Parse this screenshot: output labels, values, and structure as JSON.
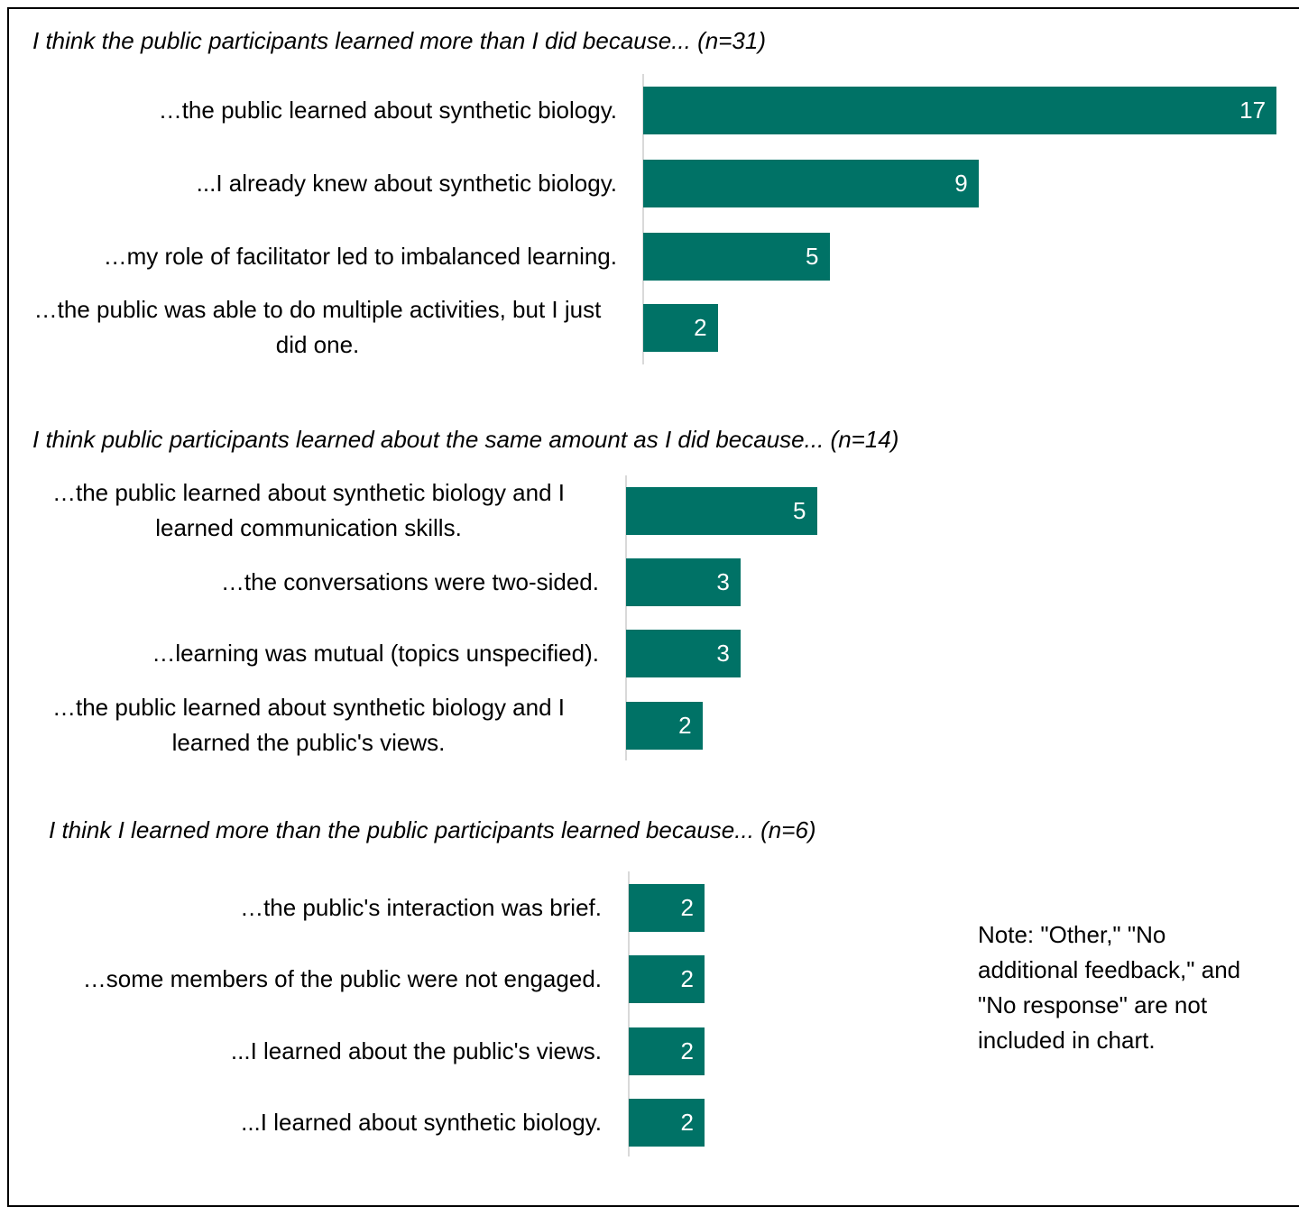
{
  "chart_data": [
    {
      "type": "bar",
      "orientation": "horizontal",
      "title": "I think the public participants learned more than I did because... (n=31)",
      "categories": [
        "…the public learned about synthetic biology.",
        "...I already knew about synthetic biology.",
        "…my role of facilitator led to imbalanced learning.",
        "…the public was able to do multiple activities, but I just did one."
      ],
      "values": [
        17,
        9,
        5,
        2
      ],
      "color": "#007266",
      "label_color": "#ffffff",
      "axis_color": "#d9d9d9"
    },
    {
      "type": "bar",
      "orientation": "horizontal",
      "title": "I think public participants learned about the same amount as I did because... (n=14)",
      "categories": [
        "…the public learned about synthetic biology and I learned communication skills.",
        "…the conversations were two-sided.",
        "…learning was mutual (topics unspecified).",
        "…the public learned about synthetic biology and I learned the public's views."
      ],
      "values": [
        5,
        3,
        3,
        2
      ],
      "color": "#007266",
      "label_color": "#ffffff",
      "axis_color": "#d9d9d9"
    },
    {
      "type": "bar",
      "orientation": "horizontal",
      "title": "I think I learned more than the public participants learned because... (n=6)",
      "categories": [
        "…the public's interaction was brief.",
        "…some members of the public were not engaged.",
        "...I learned about the public's views.",
        "...I learned about synthetic biology."
      ],
      "values": [
        2,
        2,
        2,
        2
      ],
      "color": "#007266",
      "label_color": "#ffffff",
      "axis_color": "#d9d9d9"
    }
  ],
  "note": "Note: \"Other,\" \"No additional feedback,\" and \"No response\" are not included in chart."
}
